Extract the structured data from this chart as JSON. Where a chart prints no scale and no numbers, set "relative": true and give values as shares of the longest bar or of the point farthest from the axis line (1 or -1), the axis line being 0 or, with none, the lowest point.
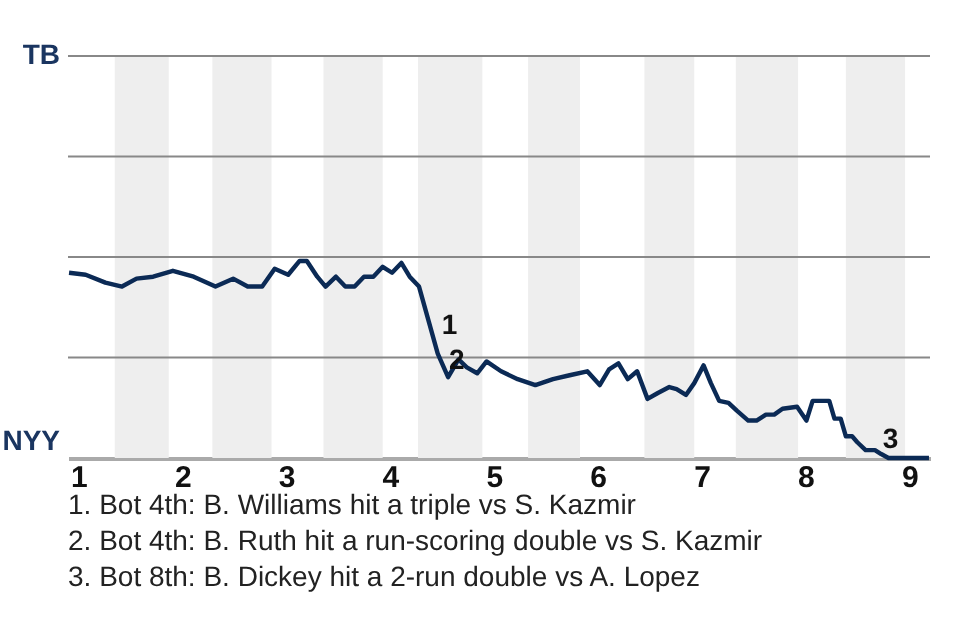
{
  "chart_data": {
    "type": "line",
    "relative": true,
    "x": [
      0.91,
      1.07,
      1.26,
      1.42,
      1.56,
      1.72,
      1.91,
      2.11,
      2.32,
      2.49,
      2.63,
      2.77,
      2.89,
      3.02,
      3.13,
      3.2,
      3.3,
      3.38,
      3.48,
      3.57,
      3.66,
      3.75,
      3.84,
      3.93,
      4.02,
      4.11,
      4.19,
      4.28,
      4.37,
      4.46,
      4.56,
      4.66,
      4.74,
      4.84,
      4.93,
      5.07,
      5.23,
      5.4,
      5.57,
      5.73,
      5.9,
      6.02,
      6.11,
      6.2,
      6.29,
      6.38,
      6.48,
      6.58,
      6.69,
      6.76,
      6.85,
      6.93,
      7.02,
      7.09,
      7.17,
      7.26,
      7.34,
      7.45,
      7.53,
      7.62,
      7.7,
      7.78,
      7.92,
      8.01,
      8.07,
      8.23,
      8.28,
      8.34,
      8.39,
      8.45,
      8.5,
      8.58,
      8.67,
      8.73,
      8.8,
      8.95,
      9.19
    ],
    "series": [
      {
        "color": "#0b2a55",
        "values": [
          0.94,
          0.93,
          0.89,
          0.87,
          0.91,
          0.92,
          0.95,
          0.92,
          0.87,
          0.91,
          0.87,
          0.87,
          0.96,
          0.93,
          1,
          1,
          0.92,
          0.87,
          0.92,
          0.87,
          0.87,
          0.92,
          0.92,
          0.97,
          0.94,
          0.99,
          0.92,
          0.87,
          0.7,
          0.53,
          0.41,
          0.5,
          0.46,
          0.43,
          0.49,
          0.44,
          0.4,
          0.37,
          0.4,
          0.42,
          0.44,
          0.37,
          0.45,
          0.48,
          0.4,
          0.44,
          0.3,
          0.33,
          0.36,
          0.35,
          0.32,
          0.38,
          0.47,
          0.38,
          0.29,
          0.28,
          0.24,
          0.19,
          0.19,
          0.22,
          0.22,
          0.25,
          0.26,
          0.19,
          0.29,
          0.29,
          0.2,
          0.2,
          0.11,
          0.11,
          0.08,
          0.04,
          0.04,
          0.02,
          0,
          0,
          0
        ]
      }
    ],
    "xlim": [
      0.9,
      9.2
    ],
    "xticks": [
      1,
      2,
      3,
      4,
      5,
      6,
      7,
      8,
      9
    ],
    "ref_lines": [
      {
        "axis": "y",
        "value": 0.51,
        "color": "#888888"
      },
      {
        "axis": "y",
        "value": 1.02,
        "color": "#888888"
      },
      {
        "axis": "y",
        "value": 1.53,
        "color": "#888888"
      },
      {
        "axis": "y",
        "value": 2.04,
        "color": "#888888"
      }
    ],
    "bands": [
      {
        "axis": "x",
        "from": 1.35,
        "to": 1.87,
        "color": "#eeeeee"
      },
      {
        "axis": "x",
        "from": 2.29,
        "to": 2.86,
        "color": "#eeeeee"
      },
      {
        "axis": "x",
        "from": 3.36,
        "to": 3.93,
        "color": "#eeeeee"
      },
      {
        "axis": "x",
        "from": 4.27,
        "to": 4.89,
        "color": "#eeeeee"
      },
      {
        "axis": "x",
        "from": 5.33,
        "to": 5.83,
        "color": "#eeeeee"
      },
      {
        "axis": "x",
        "from": 6.45,
        "to": 6.93,
        "color": "#eeeeee"
      },
      {
        "axis": "x",
        "from": 7.33,
        "to": 7.93,
        "color": "#eeeeee"
      },
      {
        "axis": "x",
        "from": 8.39,
        "to": 8.96,
        "color": "#eeeeee"
      }
    ],
    "annotations": [
      "TB",
      "NYY",
      {
        "text": "1",
        "x": 4.42,
        "y": 0.67
      },
      {
        "text": "2",
        "x": 4.49,
        "y": 0.49
      },
      {
        "text": "3",
        "x": 8.82,
        "y": 0
      },
      "1. Bot 4th: B. Williams hit a triple vs S. Kazmir",
      "2. Bot 4th: B. Ruth hit a run-scoring double vs S. Kazmir",
      "3. Bot 8th: B. Dickey hit a 2-run double vs A. Lopez"
    ]
  }
}
